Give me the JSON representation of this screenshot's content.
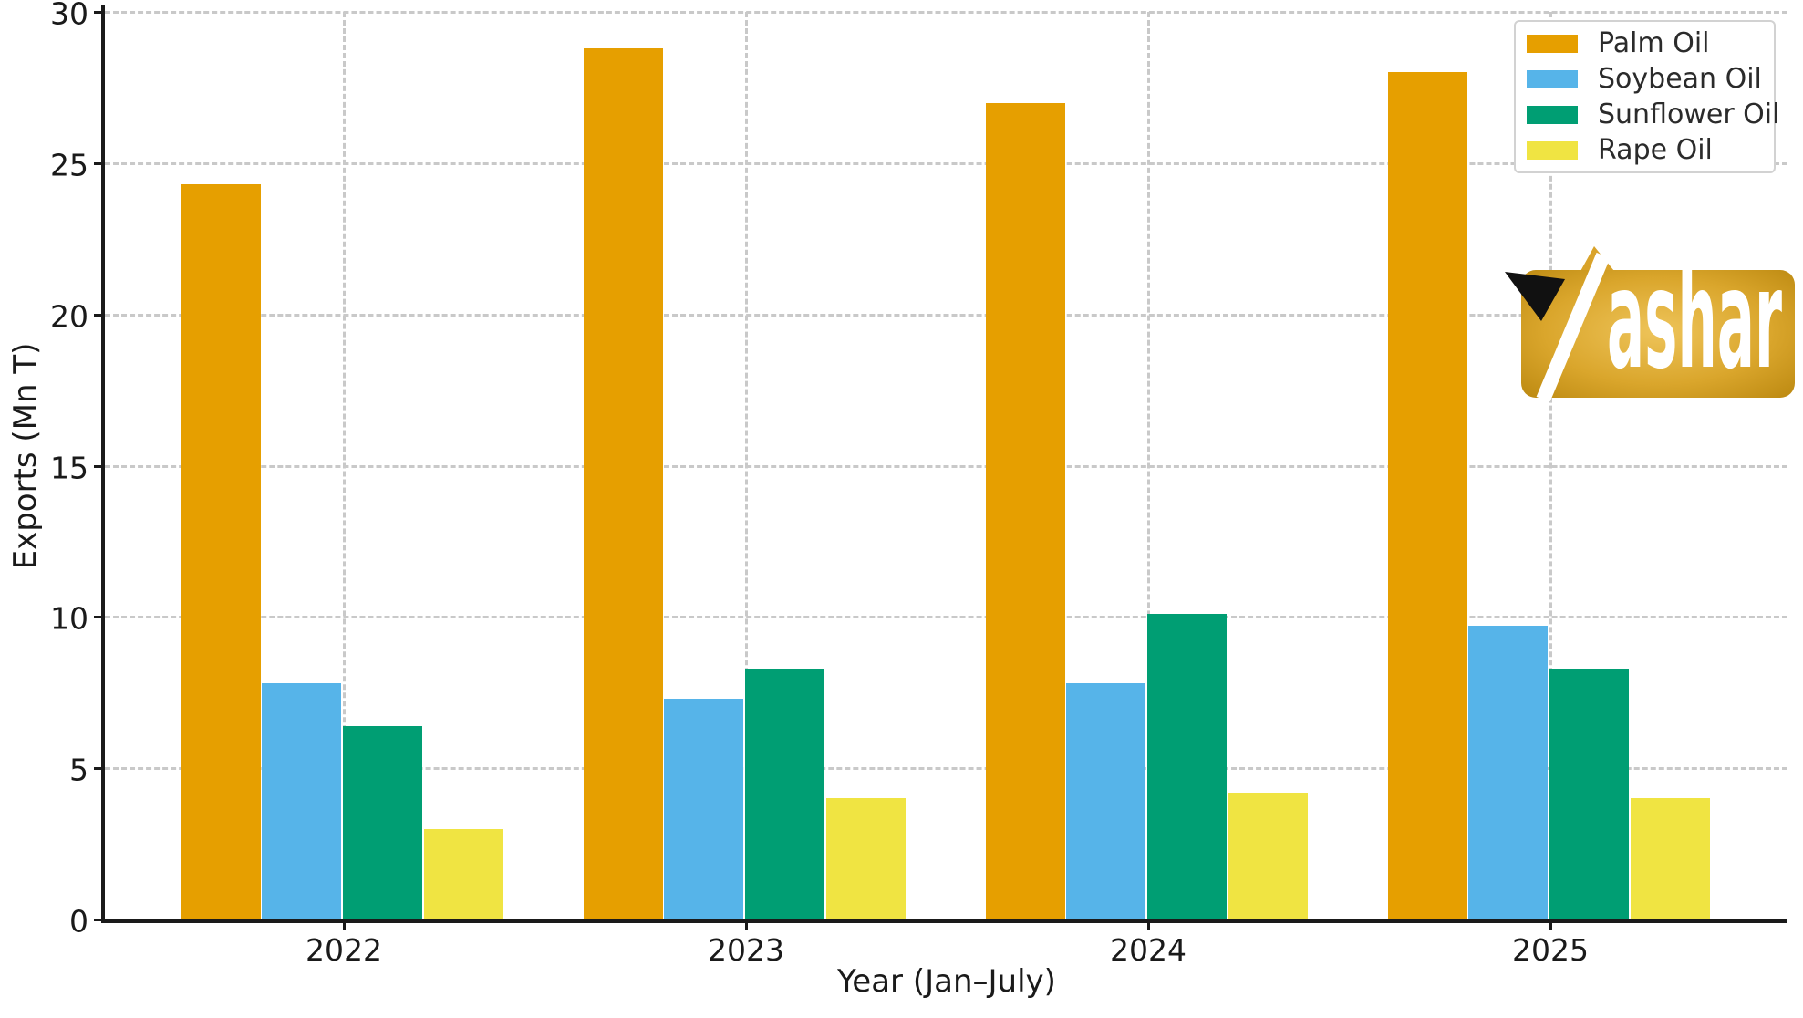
{
  "chart_data": {
    "type": "bar",
    "title": "",
    "categories": [
      "2022",
      "2023",
      "2024",
      "2025"
    ],
    "series": [
      {
        "name": "Palm Oil",
        "color": "#E69F00",
        "values": [
          24.3,
          28.8,
          27.0,
          28.0
        ]
      },
      {
        "name": "Soybean Oil",
        "color": "#56B4E9",
        "values": [
          7.8,
          7.3,
          7.8,
          9.7
        ]
      },
      {
        "name": "Sunflower Oil",
        "color": "#009E73",
        "values": [
          6.4,
          8.3,
          10.1,
          8.3
        ]
      },
      {
        "name": "Rape Oil",
        "color": "#F0E442",
        "values": [
          3.0,
          4.0,
          4.2,
          4.0
        ]
      }
    ],
    "xlabel": "Year (Jan–July)",
    "ylabel": "Exports (Mn T)",
    "ylim": [
      0,
      30
    ],
    "yticks": [
      0,
      5,
      10,
      15,
      20,
      25,
      30
    ],
    "grid": true,
    "grid_style": "dashed",
    "legend_position": "upper right",
    "background": "#ffffff",
    "text_color": "#1a1a1a"
  },
  "logo": {
    "visible_text": "ashar",
    "gold_dark": "#b9860e",
    "gold_mid": "#daa62c",
    "gold_light": "#eec45a"
  }
}
